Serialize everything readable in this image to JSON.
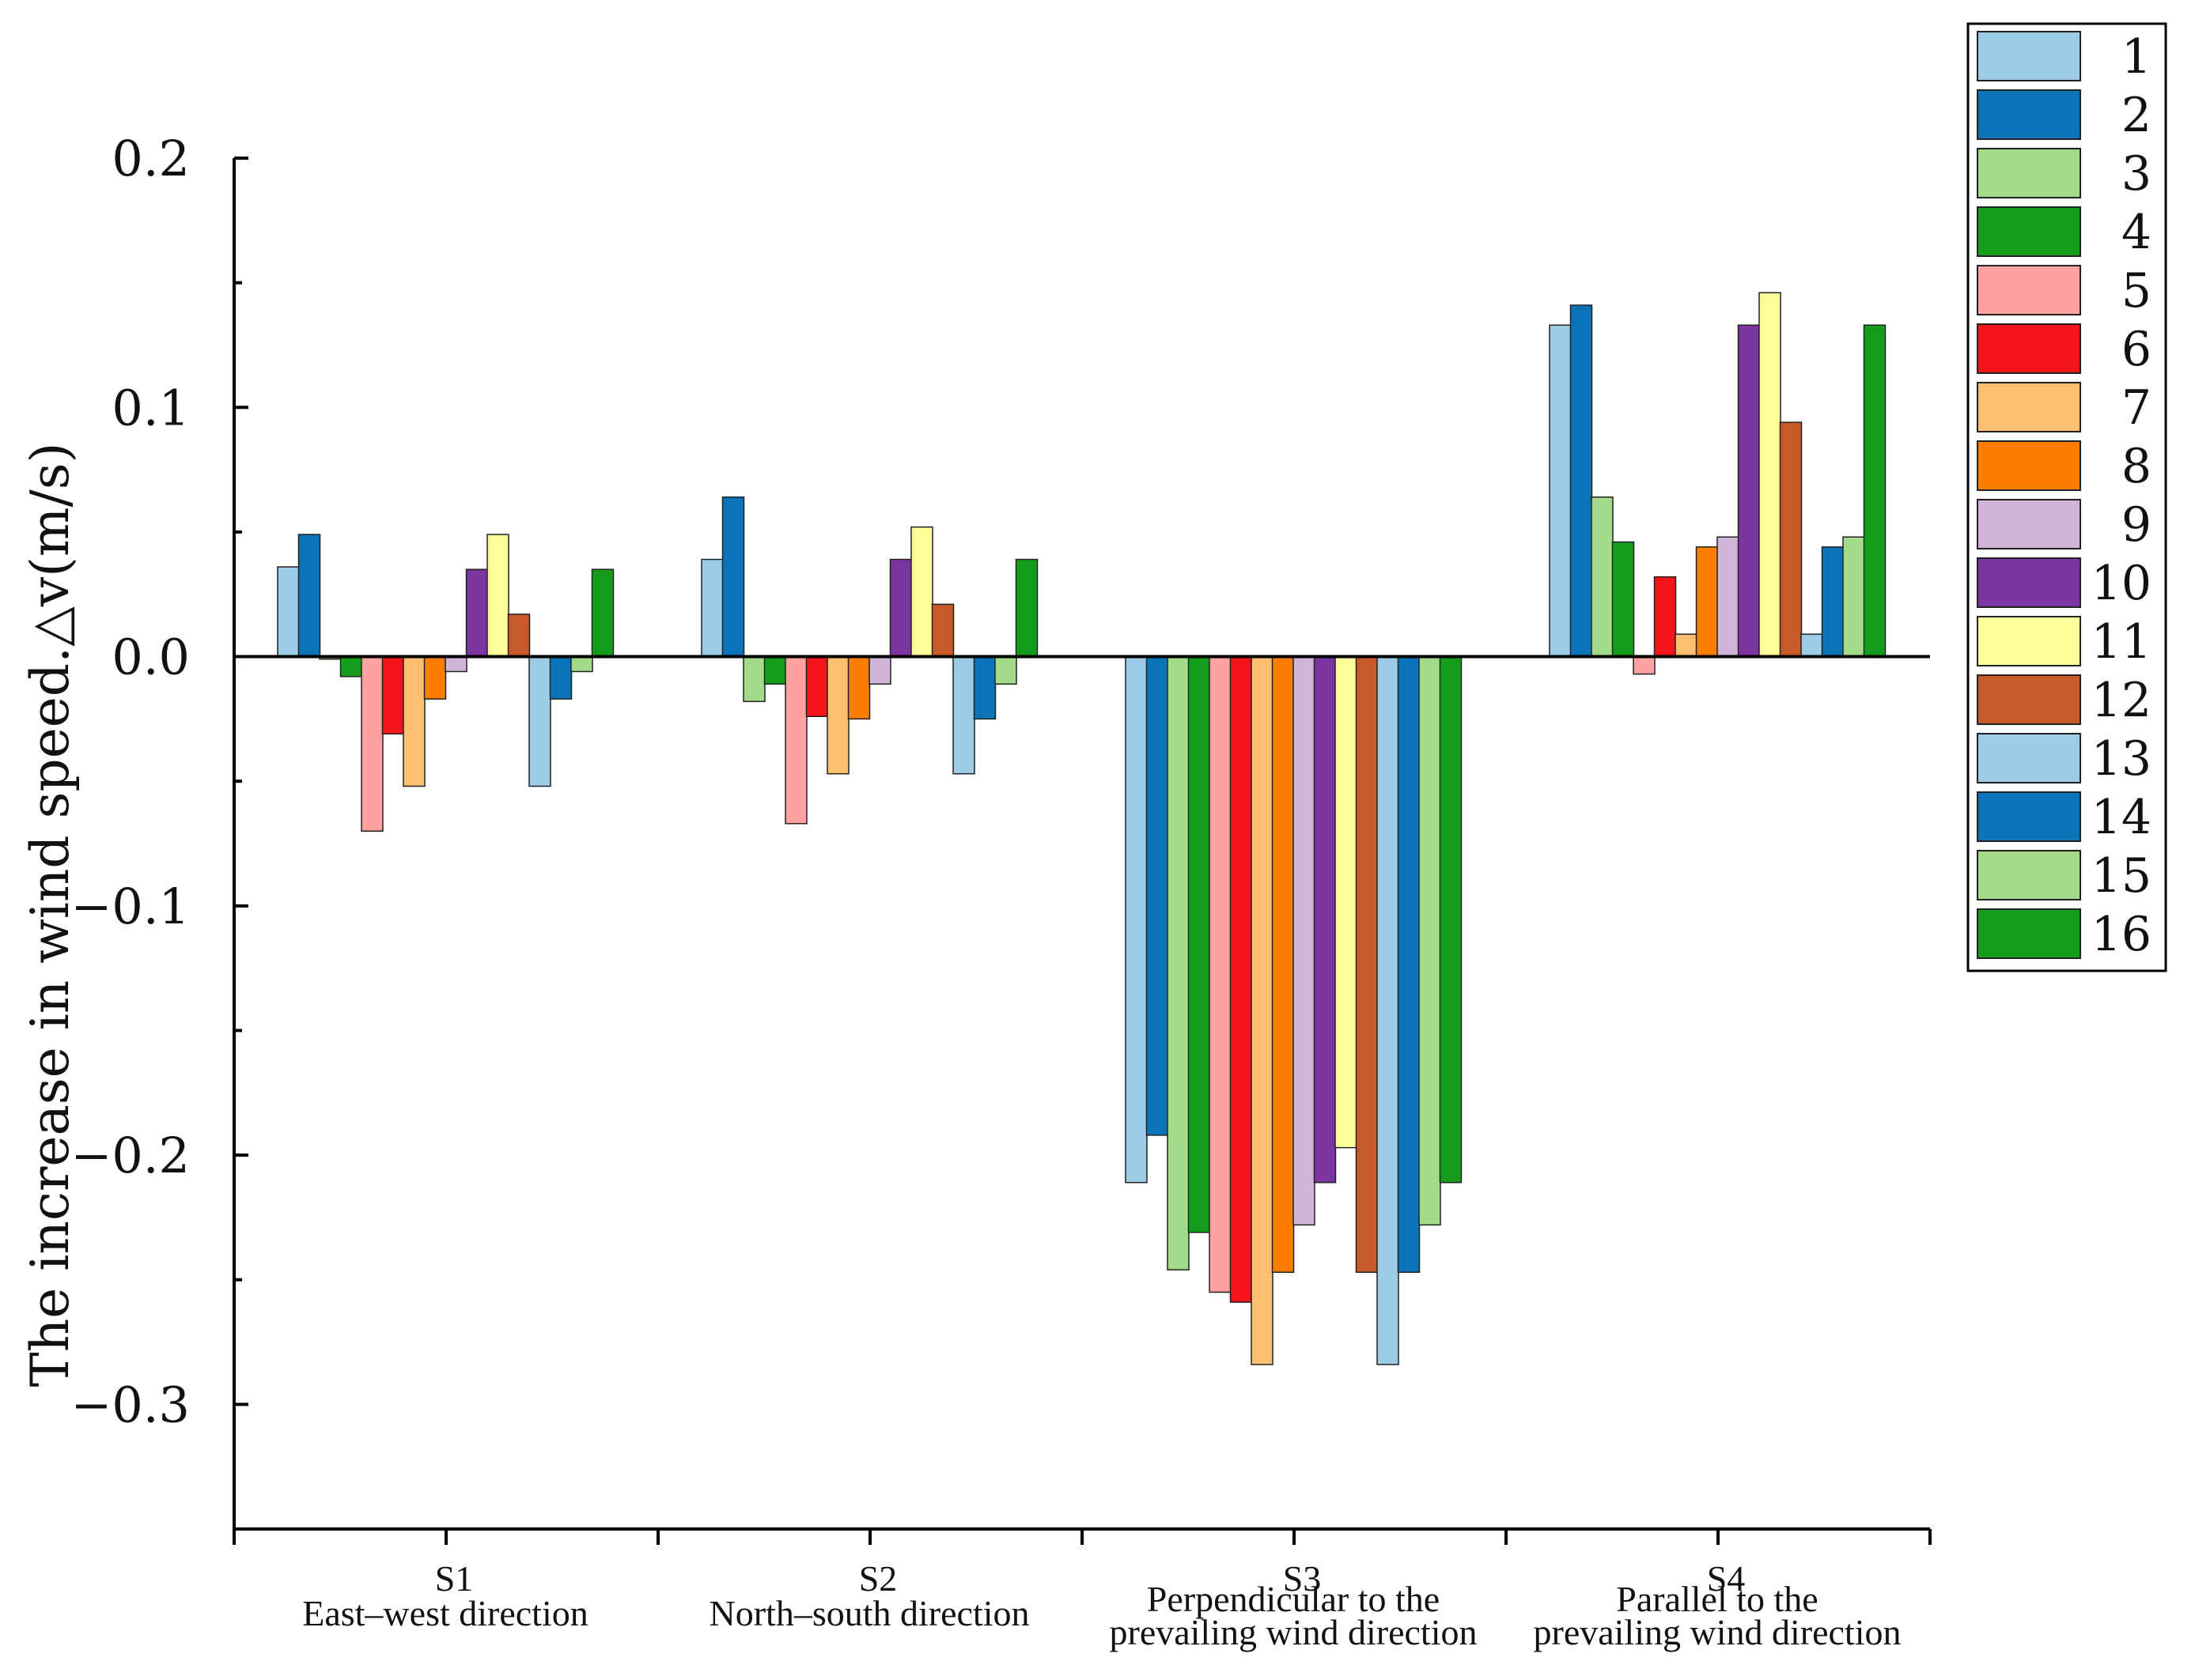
{
  "chart_data": {
    "type": "bar",
    "title": "",
    "xlabel": "",
    "ylabel": "The increase in wind speed.△v(m/s)",
    "ylim": [
      -0.35,
      0.2
    ],
    "yticks": [
      0.2,
      0.1,
      0.0,
      -0.1,
      -0.2,
      -0.3
    ],
    "ytick_labels": [
      "0.2",
      "0.1",
      "0.0",
      "−0.1",
      "−0.2",
      "−0.3"
    ],
    "categories": [
      {
        "code": "S1",
        "line1": "East–west direction",
        "line2": ""
      },
      {
        "code": "S2",
        "line1": "North–south direction",
        "line2": ""
      },
      {
        "code": "S3",
        "line1": "Perpendicular to the",
        "line2": "prevailing wind direction"
      },
      {
        "code": "S4",
        "line1": "Parallel to the",
        "line2": "prevailing wind direction"
      }
    ],
    "legend_position": "top-right",
    "series": [
      {
        "name": "1",
        "color": "#9dcde6",
        "values": [
          0.036,
          0.039,
          -0.211,
          0.133
        ]
      },
      {
        "name": "2",
        "color": "#0b73b8",
        "values": [
          0.049,
          0.064,
          -0.192,
          0.141
        ]
      },
      {
        "name": "3",
        "color": "#a2dc8b",
        "values": [
          -0.001,
          -0.018,
          -0.246,
          0.064
        ]
      },
      {
        "name": "4",
        "color": "#149c1c",
        "values": [
          -0.008,
          -0.011,
          -0.231,
          0.046
        ]
      },
      {
        "name": "5",
        "color": "#fda1a1",
        "values": [
          -0.07,
          -0.067,
          -0.255,
          -0.007
        ]
      },
      {
        "name": "6",
        "color": "#f5141a",
        "values": [
          -0.031,
          -0.024,
          -0.259,
          0.032
        ]
      },
      {
        "name": "7",
        "color": "#fdbf6f",
        "values": [
          -0.052,
          -0.047,
          -0.284,
          0.009
        ]
      },
      {
        "name": "8",
        "color": "#fb7e00",
        "values": [
          -0.017,
          -0.025,
          -0.247,
          0.044
        ]
      },
      {
        "name": "9",
        "color": "#d1b5d9",
        "values": [
          -0.006,
          -0.011,
          -0.228,
          0.048
        ]
      },
      {
        "name": "10",
        "color": "#7a35a0",
        "values": [
          0.035,
          0.039,
          -0.211,
          0.133
        ]
      },
      {
        "name": "11",
        "color": "#ffff99",
        "values": [
          0.049,
          0.052,
          -0.197,
          0.146
        ]
      },
      {
        "name": "12",
        "color": "#c75a28",
        "values": [
          0.017,
          0.021,
          -0.247,
          0.094
        ]
      },
      {
        "name": "13",
        "color": "#9dcde6",
        "values": [
          -0.052,
          -0.047,
          -0.284,
          0.009
        ]
      },
      {
        "name": "14",
        "color": "#0b73b8",
        "values": [
          -0.017,
          -0.025,
          -0.247,
          0.044
        ]
      },
      {
        "name": "15",
        "color": "#a2dc8b",
        "values": [
          -0.006,
          -0.011,
          -0.228,
          0.048
        ]
      },
      {
        "name": "16",
        "color": "#149c1c",
        "values": [
          0.035,
          0.039,
          -0.211,
          0.133
        ]
      }
    ]
  }
}
